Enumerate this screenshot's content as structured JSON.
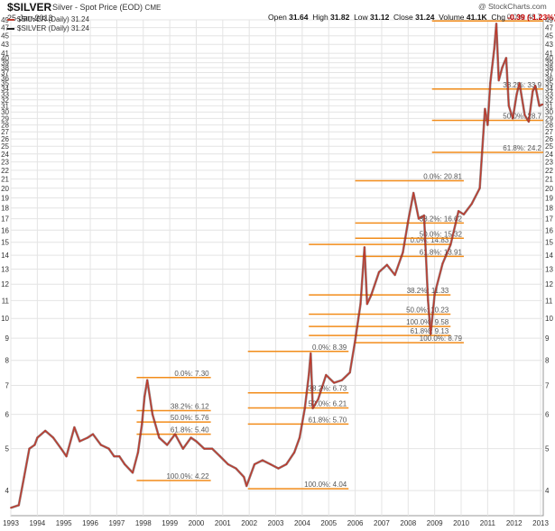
{
  "header": {
    "symbol": "$SILVER",
    "description": "Silver - Spot Price (EOD)",
    "exchange": "CME",
    "date": "25-Jan-2013",
    "open_label": "Open",
    "open": "31.64",
    "high_label": "High",
    "high": "31.82",
    "low_label": "Low",
    "low": "31.12",
    "close_label": "Close",
    "close": "31.24",
    "volume_label": "Volume",
    "volume": "41.1K",
    "chg_label": "Chg",
    "chg": "-0.39 (-1.23%)",
    "watermark": "@ StockCharts.com"
  },
  "legend": [
    {
      "text": "$SILVER (Daily) 31.24",
      "color": "#c0392b"
    },
    {
      "text": "$SILVER (Daily) 31.24",
      "color": "#222222"
    }
  ],
  "chart_data": {
    "type": "line",
    "title": "$SILVER Silver - Spot Price (EOD)",
    "yscale": "log",
    "ylim": [
      3.5,
      49
    ],
    "xlim": [
      1993.0,
      2013.1
    ],
    "y_ticks": [
      4,
      5,
      6,
      7,
      8,
      9,
      10,
      11,
      12,
      13,
      14,
      15,
      16,
      17,
      18,
      19,
      20,
      21,
      22,
      23,
      24,
      25,
      26,
      27,
      28,
      29,
      30,
      31,
      32,
      33,
      34,
      35,
      36,
      37,
      38,
      39,
      40,
      41,
      43,
      45,
      47,
      49
    ],
    "x_ticks": [
      1993,
      1994,
      1995,
      1996,
      1997,
      1998,
      1999,
      2000,
      2001,
      2002,
      2003,
      2004,
      2005,
      2006,
      2007,
      2008,
      2009,
      2010,
      2011,
      2012,
      2013
    ],
    "series": [
      {
        "name": "$SILVER (Daily)",
        "color": "#c0392b",
        "x": [
          1993.0,
          1993.3,
          1993.5,
          1993.7,
          1993.9,
          1994.0,
          1994.3,
          1994.6,
          1994.9,
          1995.1,
          1995.4,
          1995.6,
          1995.9,
          1996.1,
          1996.4,
          1996.7,
          1996.9,
          1997.1,
          1997.3,
          1997.6,
          1997.8,
          1997.95,
          1998.05,
          1998.15,
          1998.35,
          1998.6,
          1998.9,
          1999.2,
          1999.5,
          1999.8,
          2000.0,
          2000.3,
          2000.6,
          2000.9,
          2001.2,
          2001.5,
          2001.8,
          2001.9,
          2002.2,
          2002.5,
          2002.8,
          2003.1,
          2003.4,
          2003.7,
          2003.9,
          2004.1,
          2004.25,
          2004.32,
          2004.4,
          2004.6,
          2004.9,
          2005.2,
          2005.5,
          2005.8,
          2006.0,
          2006.2,
          2006.35,
          2006.45,
          2006.6,
          2006.9,
          2007.2,
          2007.5,
          2007.8,
          2008.0,
          2008.2,
          2008.4,
          2008.6,
          2008.75,
          2008.85,
          2009.0,
          2009.3,
          2009.6,
          2009.9,
          2010.1,
          2010.4,
          2010.7,
          2010.9,
          2011.0,
          2011.1,
          2011.25,
          2011.33,
          2011.42,
          2011.55,
          2011.7,
          2011.8,
          2011.95,
          2012.1,
          2012.2,
          2012.4,
          2012.55,
          2012.7,
          2012.8,
          2012.95,
          2013.07
        ],
        "values": [
          3.65,
          3.7,
          4.3,
          5.0,
          5.1,
          5.3,
          5.5,
          5.3,
          5.0,
          4.8,
          5.6,
          5.2,
          5.3,
          5.4,
          5.1,
          5.0,
          4.8,
          4.8,
          4.6,
          4.4,
          4.9,
          5.7,
          6.6,
          7.2,
          6.0,
          5.3,
          5.1,
          5.4,
          5.0,
          5.3,
          5.2,
          5.0,
          5.0,
          4.8,
          4.6,
          4.5,
          4.3,
          4.1,
          4.6,
          4.7,
          4.6,
          4.5,
          4.6,
          4.9,
          5.3,
          6.2,
          7.4,
          8.3,
          6.2,
          6.5,
          7.4,
          7.1,
          7.2,
          7.5,
          8.9,
          10.8,
          14.6,
          10.8,
          11.3,
          12.8,
          13.3,
          12.6,
          14.2,
          16.8,
          19.5,
          17.0,
          17.3,
          11.0,
          9.2,
          11.4,
          13.4,
          14.8,
          17.7,
          17.4,
          18.4,
          20.0,
          30.5,
          28.0,
          35.0,
          42.0,
          48.0,
          35.5,
          38.0,
          40.0,
          31.0,
          29.0,
          33.0,
          35.0,
          29.5,
          28.5,
          33.5,
          34.5,
          31.0,
          31.24
        ]
      }
    ],
    "fib_sets": [
      {
        "x_start": 1997.75,
        "x_end": 2000.55,
        "levels": [
          {
            "label": "0.0%: 7.30",
            "value": 7.3
          },
          {
            "label": "38.2%: 6.12",
            "value": 6.12
          },
          {
            "label": "50.0%: 5.76",
            "value": 5.76
          },
          {
            "label": "61.8%: 5.40",
            "value": 5.4
          },
          {
            "label": "100.0%: 4.22",
            "value": 4.22
          }
        ]
      },
      {
        "x_start": 2001.95,
        "x_end": 2005.75,
        "levels": [
          {
            "label": "0.0%: 8.39",
            "value": 8.39
          },
          {
            "label": "38.2%: 6.73",
            "value": 6.73
          },
          {
            "label": "50.0%: 6.21",
            "value": 6.21
          },
          {
            "label": "61.8%: 5.70",
            "value": 5.7
          },
          {
            "label": "100.0%: 4.04",
            "value": 4.04
          }
        ]
      },
      {
        "x_start": 2004.25,
        "x_end": 2009.6,
        "levels": [
          {
            "label": "0.0%: 14.83",
            "value": 14.83
          },
          {
            "label": "38.2%: 11.33",
            "value": 11.33
          },
          {
            "label": "50.0%: 10.23",
            "value": 10.23
          },
          {
            "label": "61.8%: 9.13",
            "value": 9.13
          },
          {
            "label": "100.0%: 9.58",
            "value": 9.58
          }
        ]
      },
      {
        "x_start": 2006.0,
        "x_end": 2010.1,
        "levels": [
          {
            "label": "0.0%: 20.81",
            "value": 20.81
          },
          {
            "label": "38.2%: 16.62",
            "value": 16.62
          },
          {
            "label": "50.0%: 15.32",
            "value": 15.32
          },
          {
            "label": "61.8%: 13.91",
            "value": 13.91
          },
          {
            "label": "100.0%: 8.79",
            "value": 8.79
          }
        ]
      },
      {
        "x_start": 2008.9,
        "x_end": 2013.1,
        "levels": [
          {
            "label": "0.0%: 48.7",
            "value": 48.7
          },
          {
            "label": "38.2%: 33.9",
            "value": 33.9
          },
          {
            "label": "50.0%: 28.7",
            "value": 28.7
          },
          {
            "label": "61.8%: 24.2",
            "value": 24.2
          }
        ]
      }
    ],
    "fib_color": "#f28c1a",
    "grid": true,
    "legend_position": "top-left"
  }
}
